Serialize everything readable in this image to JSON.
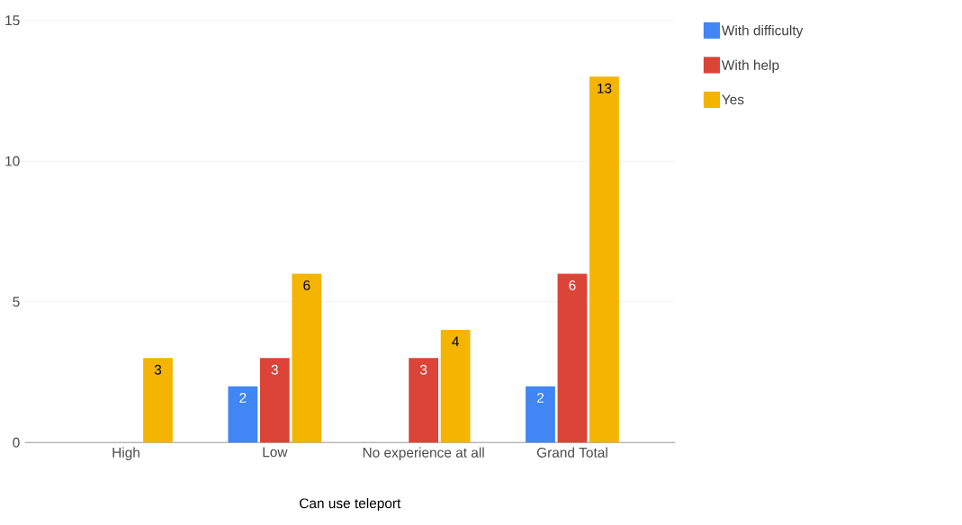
{
  "chart_data": {
    "type": "bar",
    "xlabel": "Can use teleport",
    "categories": [
      "High",
      "Low",
      "No experience at all",
      "Grand Total"
    ],
    "series": [
      {
        "name": "With difficulty",
        "color": "#4285f4",
        "values": [
          null,
          2,
          null,
          2
        ]
      },
      {
        "name": "With help",
        "color": "#db4437",
        "values": [
          null,
          3,
          3,
          6
        ]
      },
      {
        "name": "Yes",
        "color": "#f4b400",
        "values": [
          3,
          6,
          4,
          13
        ]
      }
    ],
    "ylim": [
      0,
      15
    ],
    "yticks": [
      0,
      5,
      10,
      15
    ],
    "grid": "y",
    "legend": "top right",
    "data_labels": true
  }
}
